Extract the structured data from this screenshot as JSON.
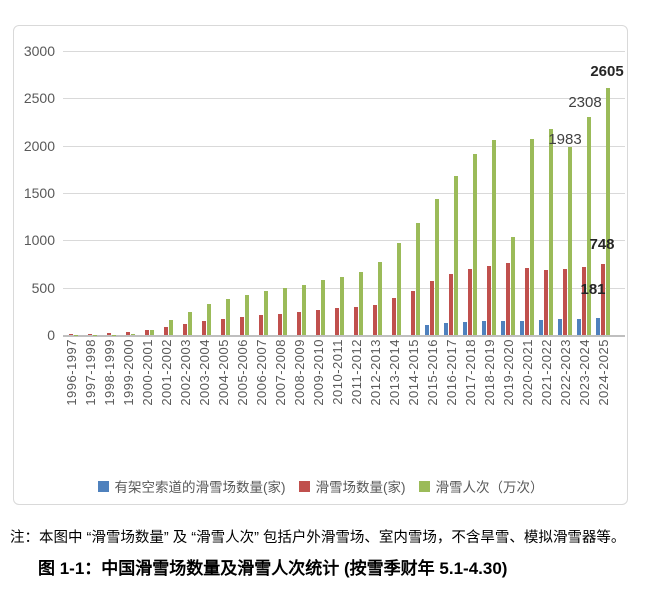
{
  "page": {
    "note": "注：本图中 “滑雪场数量” 及 “滑雪人次” 包括户外滑雪场、室内雪场，不含旱雪、模拟滑雪器等。",
    "caption": "图 1-1：中国滑雪场数量及滑雪人次统计 (按雪季财年 5.1-4.30)"
  },
  "chart_data": {
    "type": "bar",
    "title": "中国滑雪场数量及滑雪人次统计（按雪季财年 5.1-4.30）",
    "xlabel": "",
    "ylabel": "",
    "ylim": [
      0,
      3000
    ],
    "yticks": [
      0,
      500,
      1000,
      1500,
      2000,
      2500,
      3000
    ],
    "grid": true,
    "legend_position": "bottom",
    "categories": [
      "1996-1997",
      "1997-1998",
      "1998-1999",
      "1999-2000",
      "2000-2001",
      "2001-2002",
      "2002-2003",
      "2003-2004",
      "2004-2005",
      "2005-2006",
      "2006-2007",
      "2007-2008",
      "2008-2009",
      "2009-2010",
      "2010-2011",
      "2011-2012",
      "2012-2013",
      "2013-2014",
      "2014-2015",
      "2015-2016",
      "2016-2017",
      "2017-2018",
      "2018-2019",
      "2019-2020",
      "2020-2021",
      "2021-2022",
      "2022-2023",
      "2023-2024",
      "2024-2025"
    ],
    "series": [
      {
        "name": "有架空索道的滑雪场数量(家)",
        "color": "#4F81BD",
        "values": [
          null,
          null,
          null,
          null,
          null,
          null,
          null,
          null,
          null,
          null,
          null,
          null,
          null,
          null,
          null,
          null,
          null,
          null,
          null,
          110,
          125,
          137,
          145,
          148,
          150,
          158,
          164,
          172,
          181
        ]
      },
      {
        "name": "滑雪场数量(家)",
        "color": "#C0504D",
        "values": [
          10,
          14,
          19,
          28,
          50,
          85,
          120,
          150,
          170,
          190,
          208,
          225,
          243,
          261,
          280,
          300,
          317,
          395,
          465,
          570,
          645,
          694,
          729,
          764,
          711,
          683,
          694,
          715,
          748
        ]
      },
      {
        "name": "滑雪人次（万次）",
        "color": "#9BBB59",
        "values": [
          2,
          3,
          5,
          10,
          50,
          155,
          245,
          325,
          385,
          420,
          465,
          495,
          525,
          580,
          610,
          670,
          770,
          975,
          1180,
          1440,
          1680,
          1910,
          2060,
          1040,
          2070,
          2175,
          1983,
          2308,
          2605
        ]
      }
    ],
    "annotations": [
      {
        "text": "2605",
        "bold": true,
        "color": "#262626",
        "x": 593,
        "y": 37
      },
      {
        "text": "2308",
        "bold": false,
        "color": "#404040",
        "x": 571,
        "y": 68
      },
      {
        "text": "1983",
        "bold": false,
        "color": "#404040",
        "x": 551,
        "y": 105
      },
      {
        "text": "748",
        "bold": true,
        "color": "#262626",
        "x": 588,
        "y": 210
      },
      {
        "text": "181",
        "bold": true,
        "color": "#262626",
        "x": 579,
        "y": 255
      }
    ],
    "colors": {
      "gridline": "#D9D9D9",
      "axis": "#BFBFBF",
      "tick_label": "#595959",
      "legend_label": "#595959"
    }
  }
}
